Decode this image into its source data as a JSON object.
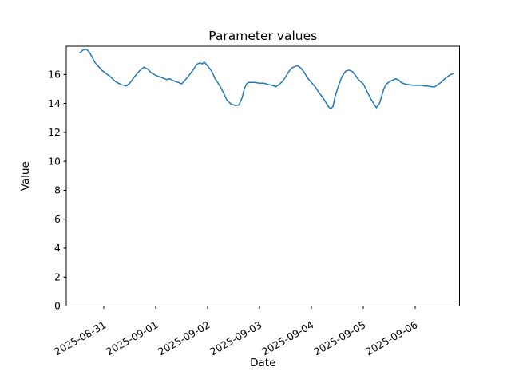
{
  "figure": {
    "background": "#ffffff",
    "foreground": "#000000"
  },
  "chart_data": {
    "type": "line",
    "title": "Parameter values",
    "xlabel": "Date",
    "ylabel": "Value",
    "grid": false,
    "legend": null,
    "line_color": "#1f77b4",
    "line_width": 1.5,
    "ylim": [
      0,
      17.95
    ],
    "yticks": [
      0,
      2,
      4,
      6,
      8,
      10,
      12,
      14,
      16
    ],
    "x_ticklabels": [
      "2025-08-31",
      "2025-09-01",
      "2025-09-02",
      "2025-09-03",
      "2025-09-04",
      "2025-09-05",
      "2025-09-06"
    ],
    "x_tick_rotation_deg": 30,
    "xlim": [
      "2025-08-30 06:40",
      "2025-09-06 20:30"
    ],
    "points": [
      [
        "2025-08-30 13:00",
        17.5
      ],
      [
        "2025-08-30 14:30",
        17.7
      ],
      [
        "2025-08-30 16:00",
        17.75
      ],
      [
        "2025-08-30 17:30",
        17.5
      ],
      [
        "2025-08-30 20:00",
        16.8
      ],
      [
        "2025-08-30 23:00",
        16.3
      ],
      [
        "2025-08-31 02:30",
        15.9
      ],
      [
        "2025-08-31 05:30",
        15.5
      ],
      [
        "2025-08-31 08:00",
        15.3
      ],
      [
        "2025-08-31 10:30",
        15.2
      ],
      [
        "2025-08-31 12:00",
        15.4
      ],
      [
        "2025-08-31 14:00",
        15.8
      ],
      [
        "2025-08-31 16:30",
        16.25
      ],
      [
        "2025-08-31 18:30",
        16.5
      ],
      [
        "2025-08-31 20:30",
        16.35
      ],
      [
        "2025-08-31 22:00",
        16.1
      ],
      [
        "2025-09-01 00:30",
        15.9
      ],
      [
        "2025-09-01 02:30",
        15.8
      ],
      [
        "2025-09-01 05:00",
        15.65
      ],
      [
        "2025-09-01 06:30",
        15.7
      ],
      [
        "2025-09-01 08:30",
        15.55
      ],
      [
        "2025-09-01 10:30",
        15.45
      ],
      [
        "2025-09-01 12:00",
        15.35
      ],
      [
        "2025-09-01 13:30",
        15.6
      ],
      [
        "2025-09-01 15:30",
        15.95
      ],
      [
        "2025-09-01 17:30",
        16.35
      ],
      [
        "2025-09-01 19:00",
        16.7
      ],
      [
        "2025-09-01 20:30",
        16.8
      ],
      [
        "2025-09-01 21:30",
        16.72
      ],
      [
        "2025-09-01 22:30",
        16.85
      ],
      [
        "2025-09-02 00:00",
        16.6
      ],
      [
        "2025-09-02 02:00",
        16.2
      ],
      [
        "2025-09-02 03:30",
        15.7
      ],
      [
        "2025-09-02 05:30",
        15.25
      ],
      [
        "2025-09-02 07:30",
        14.7
      ],
      [
        "2025-09-02 09:00",
        14.2
      ],
      [
        "2025-09-02 11:00",
        13.95
      ],
      [
        "2025-09-02 13:00",
        13.85
      ],
      [
        "2025-09-02 14:30",
        13.9
      ],
      [
        "2025-09-02 16:00",
        14.4
      ],
      [
        "2025-09-02 17:00",
        15.0
      ],
      [
        "2025-09-02 18:00",
        15.35
      ],
      [
        "2025-09-02 19:00",
        15.45
      ],
      [
        "2025-09-02 21:30",
        15.45
      ],
      [
        "2025-09-03 00:00",
        15.4
      ],
      [
        "2025-09-03 02:00",
        15.4
      ],
      [
        "2025-09-03 04:00",
        15.3
      ],
      [
        "2025-09-03 06:00",
        15.25
      ],
      [
        "2025-09-03 07:30",
        15.15
      ],
      [
        "2025-09-03 09:00",
        15.3
      ],
      [
        "2025-09-03 10:30",
        15.5
      ],
      [
        "2025-09-03 12:00",
        15.8
      ],
      [
        "2025-09-03 13:30",
        16.2
      ],
      [
        "2025-09-03 15:00",
        16.45
      ],
      [
        "2025-09-03 16:30",
        16.55
      ],
      [
        "2025-09-03 17:30",
        16.6
      ],
      [
        "2025-09-03 19:00",
        16.45
      ],
      [
        "2025-09-03 20:30",
        16.2
      ],
      [
        "2025-09-03 22:00",
        15.8
      ],
      [
        "2025-09-04 00:00",
        15.45
      ],
      [
        "2025-09-04 02:00",
        15.1
      ],
      [
        "2025-09-04 03:30",
        14.75
      ],
      [
        "2025-09-04 05:30",
        14.35
      ],
      [
        "2025-09-04 07:00",
        14.0
      ],
      [
        "2025-09-04 08:00",
        13.75
      ],
      [
        "2025-09-04 09:00",
        13.65
      ],
      [
        "2025-09-04 10:00",
        13.8
      ],
      [
        "2025-09-04 11:00",
        14.5
      ],
      [
        "2025-09-04 12:30",
        15.2
      ],
      [
        "2025-09-04 14:00",
        15.8
      ],
      [
        "2025-09-04 15:00",
        16.05
      ],
      [
        "2025-09-04 16:00",
        16.25
      ],
      [
        "2025-09-04 17:30",
        16.3
      ],
      [
        "2025-09-04 19:00",
        16.2
      ],
      [
        "2025-09-04 20:30",
        15.9
      ],
      [
        "2025-09-04 22:00",
        15.6
      ],
      [
        "2025-09-05 00:00",
        15.35
      ],
      [
        "2025-09-05 01:30",
        14.9
      ],
      [
        "2025-09-05 02:30",
        14.6
      ],
      [
        "2025-09-05 03:30",
        14.3
      ],
      [
        "2025-09-05 05:00",
        13.95
      ],
      [
        "2025-09-05 06:00",
        13.7
      ],
      [
        "2025-09-05 07:30",
        14.0
      ],
      [
        "2025-09-05 08:30",
        14.5
      ],
      [
        "2025-09-05 09:30",
        15.0
      ],
      [
        "2025-09-05 10:30",
        15.3
      ],
      [
        "2025-09-05 12:00",
        15.5
      ],
      [
        "2025-09-05 13:30",
        15.6
      ],
      [
        "2025-09-05 15:00",
        15.7
      ],
      [
        "2025-09-05 16:30",
        15.6
      ],
      [
        "2025-09-05 17:30",
        15.45
      ],
      [
        "2025-09-05 19:00",
        15.35
      ],
      [
        "2025-09-05 21:00",
        15.3
      ],
      [
        "2025-09-05 23:00",
        15.25
      ],
      [
        "2025-09-06 00:30",
        15.25
      ],
      [
        "2025-09-06 02:30",
        15.25
      ],
      [
        "2025-09-06 04:30",
        15.2
      ],
      [
        "2025-09-06 06:00",
        15.2
      ],
      [
        "2025-09-06 07:30",
        15.15
      ],
      [
        "2025-09-06 09:00",
        15.15
      ],
      [
        "2025-09-06 10:30",
        15.3
      ],
      [
        "2025-09-06 12:00",
        15.45
      ],
      [
        "2025-09-06 13:15",
        15.65
      ],
      [
        "2025-09-06 15:00",
        15.85
      ],
      [
        "2025-09-06 16:30",
        16.0
      ],
      [
        "2025-09-06 17:30",
        16.05
      ]
    ]
  }
}
